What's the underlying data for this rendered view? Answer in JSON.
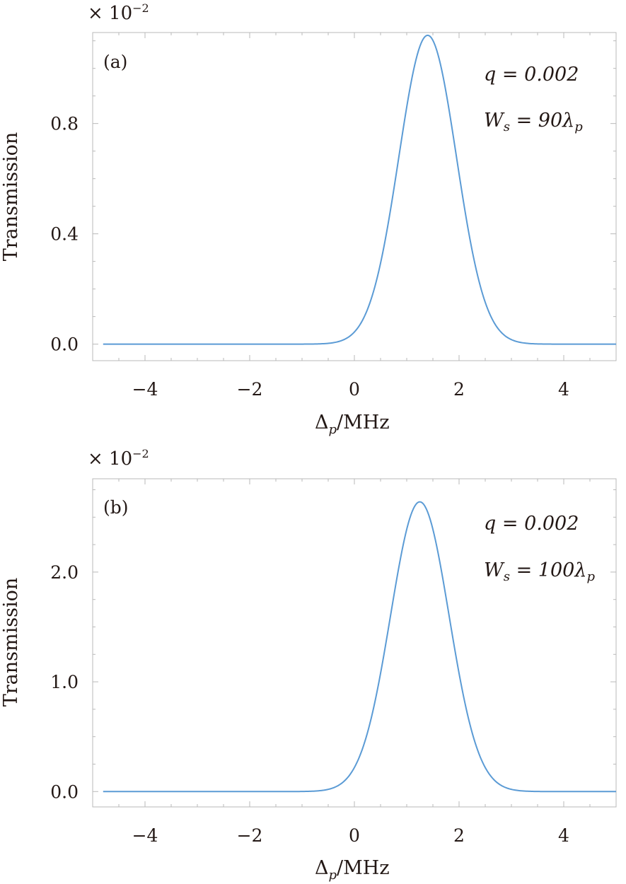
{
  "colors": {
    "curve": "#5b9bd5",
    "frame": "#b9b9b9",
    "text": "#231815"
  },
  "chart_data": [
    {
      "type": "line",
      "panel_label": "(a)",
      "scale_label": "× 10",
      "scale_exp": "−2",
      "xlabel_main": "Δ",
      "xlabel_sub": "p",
      "xlabel_rest": "/MHz",
      "ylabel": "Transmission",
      "xlim": [
        -5,
        5
      ],
      "ylim": [
        -0.06,
        1.13
      ],
      "x_ticks": [
        -4,
        -2,
        0,
        2,
        4
      ],
      "x_tick_labels": [
        "−4",
        "−2",
        "0",
        "2",
        "4"
      ],
      "y_ticks": [
        0,
        0.4,
        0.8
      ],
      "y_tick_labels": [
        "0.0",
        "0.4",
        "0.8"
      ],
      "annotations": [
        "q = 0.002",
        "W",
        "s",
        " = 90λ",
        "p"
      ],
      "series": [
        {
          "peak_x": 1.4,
          "peak_y": 1.12,
          "sigma": 0.55,
          "x": [
            -4.8,
            -2,
            -1,
            -0.5,
            0,
            0.5,
            1,
            1.4,
            2,
            2.5,
            3,
            4,
            5
          ],
          "y": [
            0,
            0,
            0.002,
            0.012,
            0.08,
            0.36,
            0.86,
            1.12,
            0.62,
            0.18,
            0.02,
            0,
            0
          ]
        }
      ]
    },
    {
      "type": "line",
      "panel_label": "(b)",
      "scale_label": "× 10",
      "scale_exp": "−2",
      "xlabel_main": "Δ",
      "xlabel_sub": "p",
      "xlabel_rest": "/MHz",
      "ylabel": "Transmission",
      "xlim": [
        -5,
        5
      ],
      "ylim": [
        -0.14,
        2.85
      ],
      "x_ticks": [
        -4,
        -2,
        0,
        2,
        4
      ],
      "x_tick_labels": [
        "−4",
        "−2",
        "0",
        "2",
        "4"
      ],
      "y_ticks": [
        0,
        1.0,
        2.0
      ],
      "y_tick_labels": [
        "0.0",
        "1.0",
        "2.0"
      ],
      "annotations": [
        "q = 0.002",
        "W",
        "s",
        " = 100λ",
        "p"
      ],
      "series": [
        {
          "peak_x": 1.25,
          "peak_y": 2.64,
          "sigma": 0.56,
          "x": [
            -4.8,
            -2,
            -1,
            -0.5,
            0,
            0.5,
            1,
            1.25,
            2,
            2.5,
            3,
            4,
            5
          ],
          "y": [
            0,
            0,
            0.004,
            0.03,
            0.2,
            0.97,
            2.3,
            2.64,
            1.2,
            0.3,
            0.04,
            0,
            0
          ]
        }
      ]
    }
  ]
}
